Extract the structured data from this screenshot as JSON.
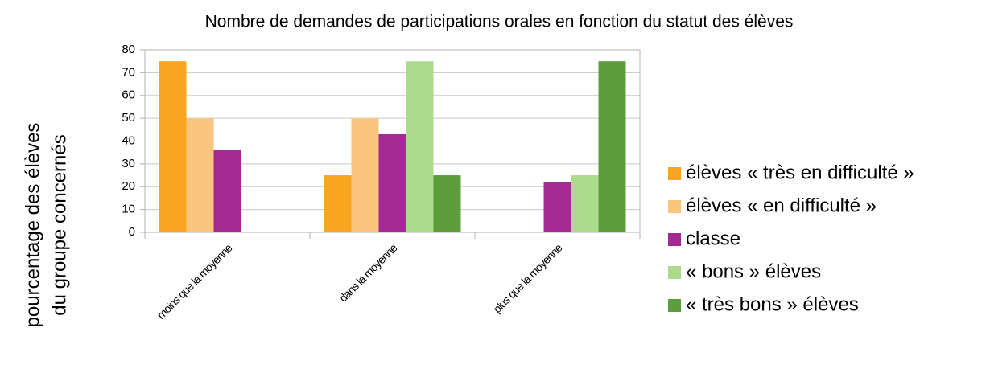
{
  "chart_data": {
    "type": "bar",
    "title": "Nombre de demandes de participations orales en fonction du statut des élèves",
    "y_label": [
      "pourcentage des élèves",
      "du groupe concernés"
    ],
    "categories": [
      "moins que la moyenne",
      "dans la moyenne",
      "plus que la moyenne"
    ],
    "series": [
      {
        "name": "élèves « très en difficulté »",
        "color": "#f8a61f",
        "values": [
          75,
          25,
          0
        ]
      },
      {
        "name": "élèves « en difficulté »",
        "color": "#fcc57f",
        "values": [
          50,
          50,
          0
        ]
      },
      {
        "name": "classe",
        "color": "#a42a93",
        "values": [
          36,
          43,
          22
        ]
      },
      {
        "name": "« bons » élèves",
        "color": "#addb8e",
        "values": [
          0,
          75,
          25
        ]
      },
      {
        "name": "« très bons » élèves",
        "color": "#5b9e3b",
        "values": [
          0,
          25,
          75
        ]
      }
    ],
    "ylim": [
      0,
      80
    ],
    "yticks": [
      0,
      10,
      20,
      30,
      40,
      50,
      60,
      70,
      80
    ],
    "grid": true,
    "legend": "right"
  }
}
